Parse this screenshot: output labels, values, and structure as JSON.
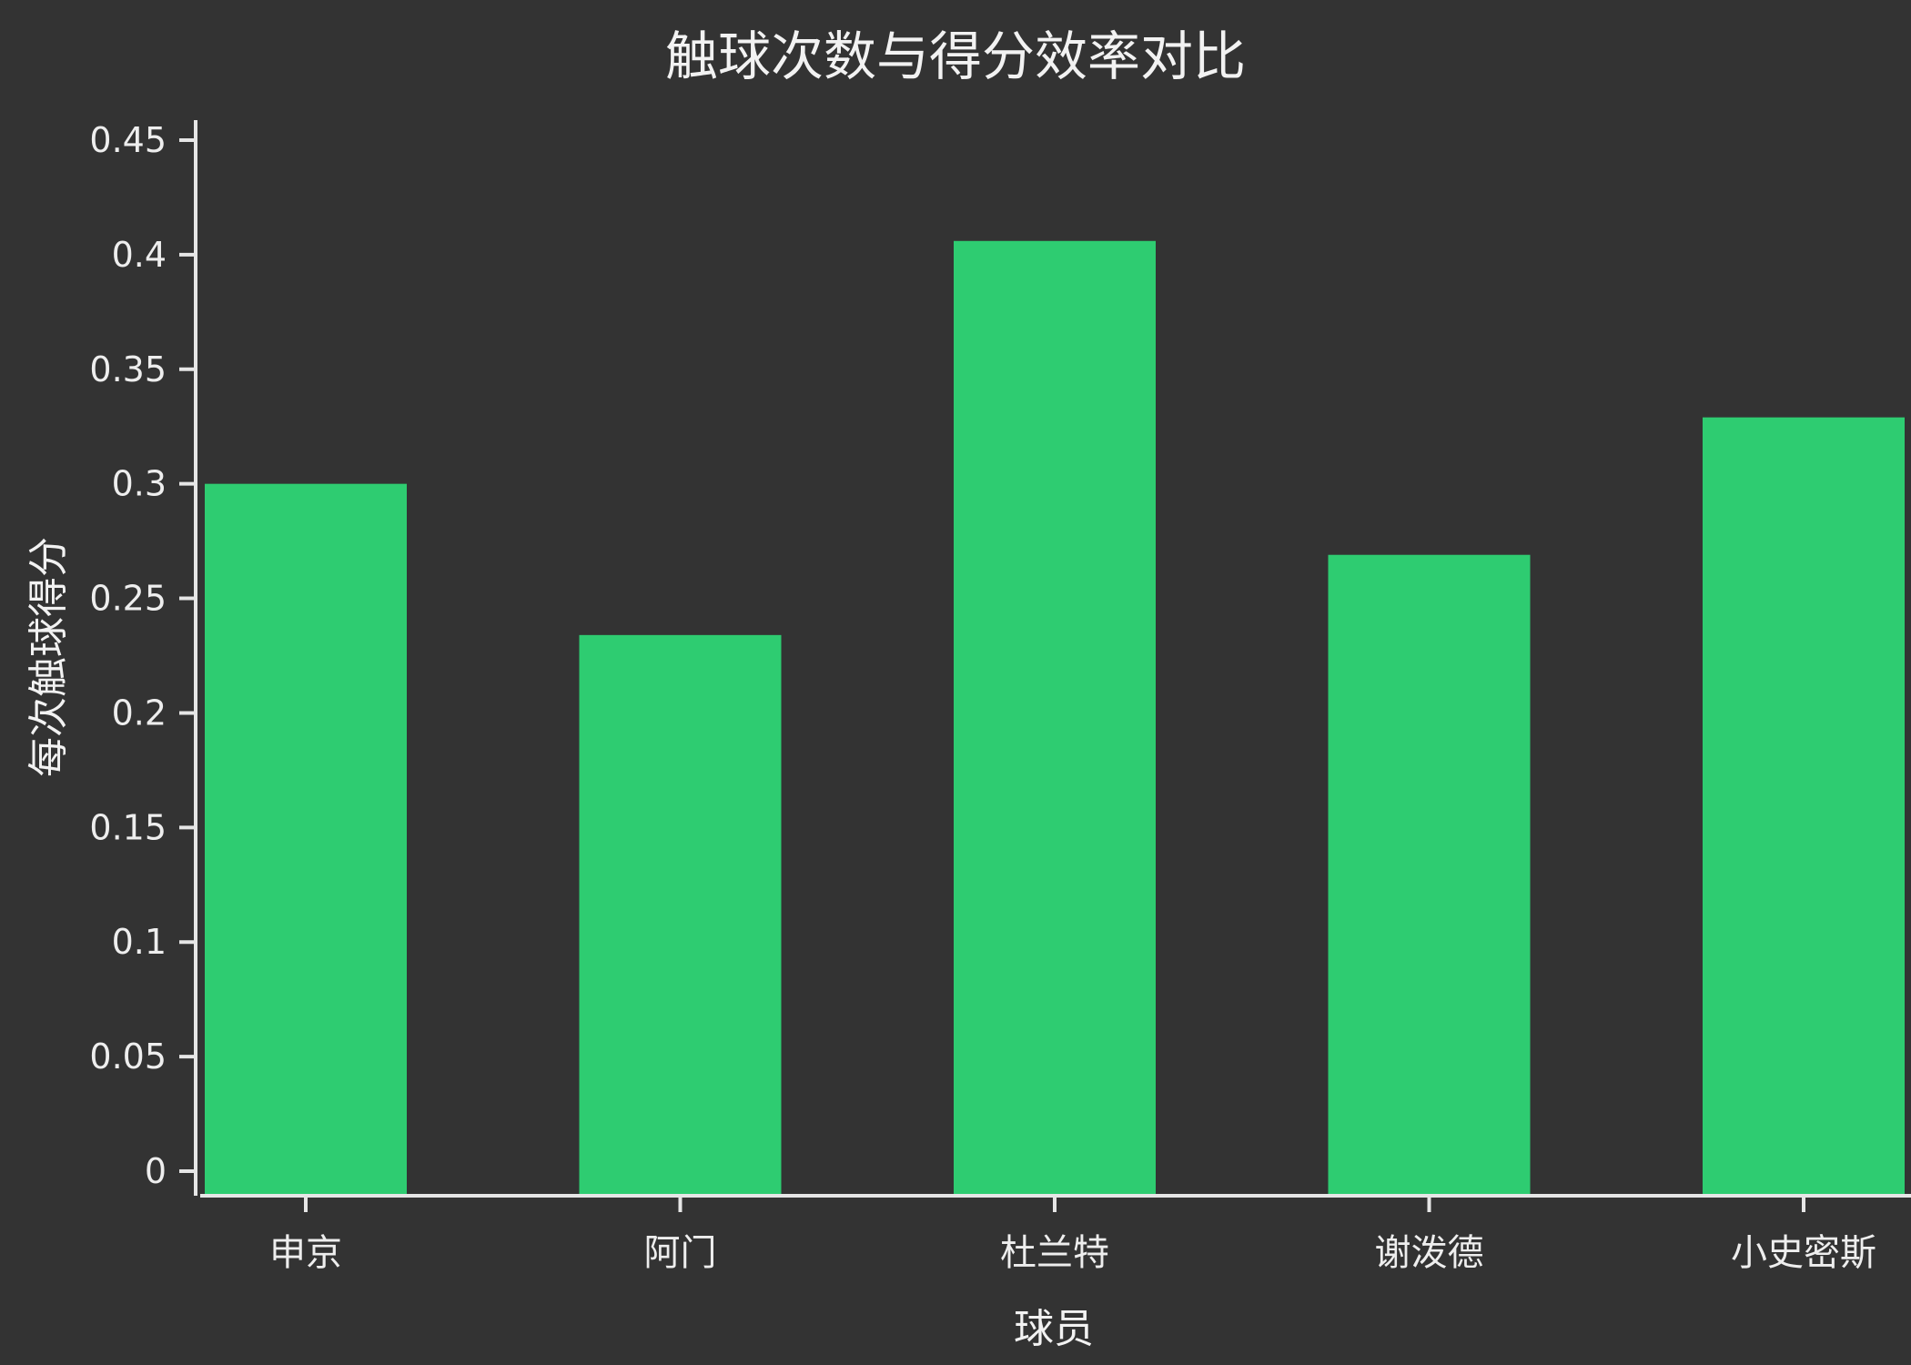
{
  "chart_data": {
    "type": "bar",
    "title": "触球次数与得分效率对比",
    "xlabel": "球员",
    "ylabel": "每次触球得分",
    "categories": [
      "申京",
      "阿门",
      "杜兰特",
      "谢泼德",
      "小史密斯"
    ],
    "values": [
      0.3,
      0.234,
      0.406,
      0.269,
      0.329
    ],
    "ylim": [
      0,
      0.45
    ],
    "yticks": [
      0,
      0.05,
      0.1,
      0.15,
      0.2,
      0.25,
      0.3,
      0.35,
      0.4,
      0.45
    ],
    "ytick_labels": [
      "0",
      "0.05",
      "0.1",
      "0.15",
      "0.2",
      "0.25",
      "0.3",
      "0.35",
      "0.4",
      "0.45"
    ],
    "bar_color": "#2ecc71",
    "background_color": "#333333",
    "grid": false,
    "legend": "none"
  }
}
